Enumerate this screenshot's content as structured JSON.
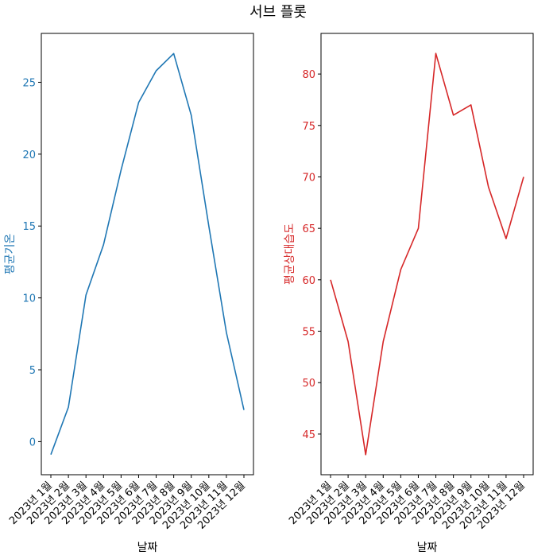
{
  "suptitle": "서브 플롯",
  "chart_data": [
    {
      "type": "line",
      "categories": [
        "2023년 1월",
        "2023년 2월",
        "2023년 3월",
        "2023년 4월",
        "2023년 5월",
        "2023년 6월",
        "2023년 7월",
        "2023년 8월",
        "2023년 9월",
        "2023년 10월",
        "2023년 11월",
        "2023년 12월"
      ],
      "series": [
        {
          "values": [
            -0.9,
            2.4,
            10.2,
            13.7,
            18.9,
            23.6,
            25.8,
            27.0,
            22.7,
            15.0,
            7.6,
            2.2
          ],
          "color": "#1f77b4"
        }
      ],
      "xlabel": "날짜",
      "ylabel": "평균기온",
      "ylabel_color": "#1f77b4",
      "ytick_color": "#1f77b4",
      "ylim": [
        -2.3,
        28.4
      ],
      "yticks": [
        0,
        5,
        10,
        15,
        20,
        25
      ],
      "grid": false
    },
    {
      "type": "line",
      "categories": [
        "2023년 1월",
        "2023년 2월",
        "2023년 3월",
        "2023년 4월",
        "2023년 5월",
        "2023년 6월",
        "2023년 7월",
        "2023년 8월",
        "2023년 9월",
        "2023년 10월",
        "2023년 11월",
        "2023년 12월"
      ],
      "series": [
        {
          "values": [
            60,
            54,
            43,
            54,
            61,
            65,
            82,
            76,
            77,
            69,
            64,
            70
          ],
          "color": "#d62728"
        }
      ],
      "xlabel": "날짜",
      "ylabel": "평균상대습도",
      "ylabel_color": "#d62728",
      "ytick_color": "#d62728",
      "ylim": [
        41.05,
        83.95
      ],
      "yticks": [
        45,
        50,
        55,
        60,
        65,
        70,
        75,
        80
      ],
      "grid": false
    }
  ]
}
